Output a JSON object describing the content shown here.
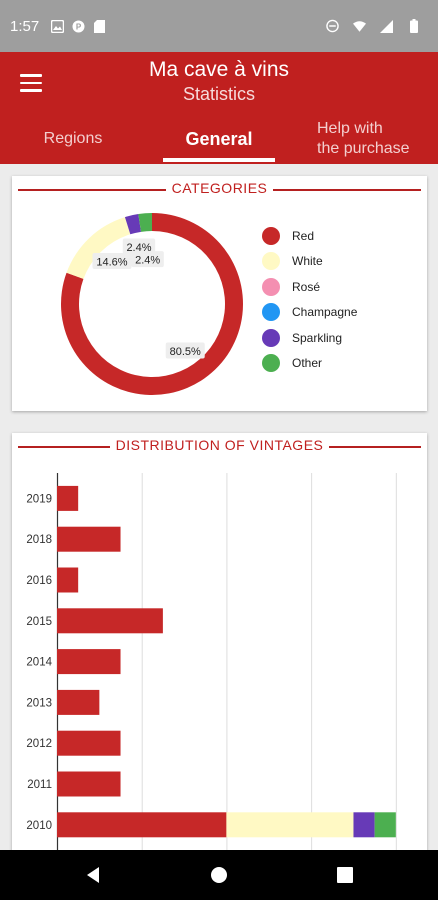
{
  "status_bar": {
    "time": "1:57",
    "left_icons": [
      "photo-icon",
      "pocket-icon",
      "sd-card-icon"
    ],
    "right_icons": [
      "dnd-icon",
      "wifi-icon",
      "signal-icon",
      "battery-icon"
    ]
  },
  "app_bar": {
    "title": "Ma cave à vins",
    "subtitle": "Statistics"
  },
  "tabs": [
    {
      "label": "Regions"
    },
    {
      "label": "General"
    },
    {
      "label_line1": "Help with",
      "label_line2": "the purchase"
    }
  ],
  "categories_card": {
    "header": "CATEGORIES"
  },
  "vintages_card": {
    "header": "DISTRIBUTION OF VINTAGES"
  },
  "colors": {
    "accent": "#c0201f",
    "red": "#c62828",
    "white": "#fff9c4",
    "rose": "#f48fb1",
    "champagne": "#2196f3",
    "sparkling": "#673ab7",
    "other": "#4caf50"
  },
  "chart_data": [
    {
      "type": "pie",
      "variant": "donut",
      "title": "CATEGORIES",
      "categories": [
        "Red",
        "White",
        "Rosé",
        "Champagne",
        "Sparkling",
        "Other"
      ],
      "values": [
        80.5,
        14.6,
        0,
        0,
        2.4,
        2.4
      ],
      "labels": [
        "80.5%",
        "14.6%",
        "2.4%",
        "2.4%"
      ],
      "legend": "right"
    },
    {
      "type": "bar",
      "orientation": "horizontal",
      "stacked": true,
      "title": "DISTRIBUTION OF VINTAGES",
      "categories": [
        "2019",
        "2018",
        "2016",
        "2015",
        "2014",
        "2013",
        "2012",
        "2011",
        "2010"
      ],
      "series": [
        {
          "name": "Red",
          "values": [
            1,
            3,
            1,
            5,
            3,
            2,
            3,
            3,
            8
          ]
        },
        {
          "name": "White",
          "values": [
            0,
            0,
            0,
            0,
            0,
            0,
            0,
            0,
            6
          ]
        },
        {
          "name": "Sparkling",
          "values": [
            0,
            0,
            0,
            0,
            0,
            0,
            0,
            0,
            1
          ]
        },
        {
          "name": "Other",
          "values": [
            0,
            0,
            0,
            0,
            0,
            0,
            0,
            0,
            1
          ]
        }
      ],
      "xlim": [
        0,
        17
      ],
      "grid": true
    }
  ]
}
